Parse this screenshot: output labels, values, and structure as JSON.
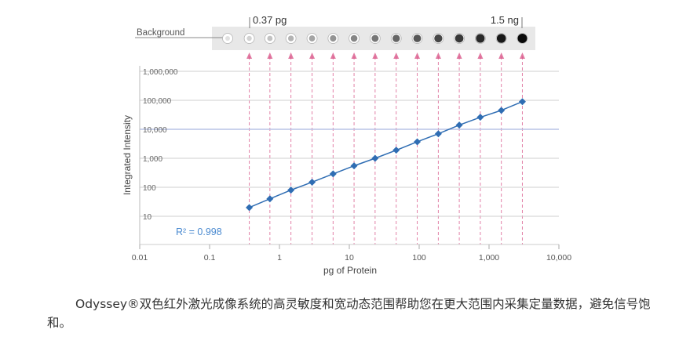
{
  "chart_data": {
    "type": "line",
    "xlabel": "pg of Protein",
    "ylabel": "Integrated Intensity",
    "x_scale": "log",
    "y_scale": "log",
    "xlim": [
      0.01,
      10000
    ],
    "ylim": [
      1,
      3000000
    ],
    "x_ticks": [
      0.01,
      0.1,
      1,
      10,
      100,
      1000,
      10000
    ],
    "x_tick_labels": [
      "0.01",
      "0.1",
      "1",
      "10",
      "100",
      "1,000",
      "10,000"
    ],
    "y_ticks": [
      10,
      100,
      1000,
      10000,
      100000,
      1000000
    ],
    "y_tick_labels": [
      "10",
      "100",
      "1,000",
      "10,000",
      "100,000",
      "1,000,000"
    ],
    "series": [
      {
        "x": [
          0.37,
          0.73,
          1.46,
          2.93,
          5.86,
          11.7,
          23.4,
          46.9,
          93.8,
          188,
          375,
          750,
          1500,
          3000
        ],
        "y": [
          20,
          40,
          80,
          150,
          290,
          550,
          1000,
          1900,
          3700,
          7000,
          14000,
          26000,
          45000,
          90000
        ]
      }
    ],
    "annotation": "R² = 0.998",
    "grid": "horizontal",
    "color": "#2f6db3",
    "highlight_gridline": 10000,
    "dot_strip": {
      "label": "Background",
      "start_label": "0.37 pg",
      "end_label": "1.5 ng",
      "spots": 15,
      "background_color": "#e8e8e8",
      "guide_color": "#d9578a"
    }
  },
  "caption": "Odyssey®双色红外激光成像系统的高灵敏度和宽动态范围帮助您在更大范围内采集定量数据，避免信号饱和。"
}
